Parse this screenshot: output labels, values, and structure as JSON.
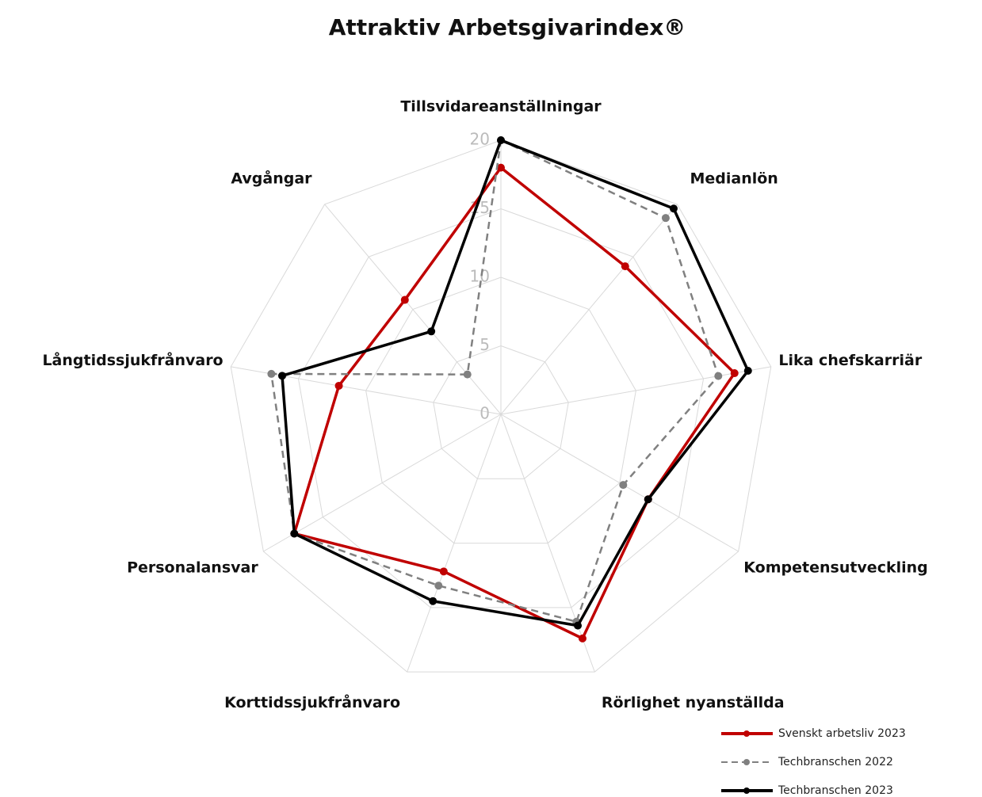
{
  "chart_data": {
    "type": "radar",
    "title": "Attraktiv Arbetsgivarindex®",
    "categories": [
      "Tillsvidareanställningar",
      "Medianlön",
      "Lika chefskarriär",
      "Kompetensutveckling",
      "Rörlighet nyanställda",
      "Korttidssjukfrånvaro",
      "Personalansvar",
      "Långtidssjukfrånvaro",
      "Avgångar"
    ],
    "series": [
      {
        "name": "Svenskt arbetsliv 2023",
        "color": "#c00000",
        "dash": false,
        "values": [
          18,
          14.1,
          17.3,
          12.4,
          17.4,
          12.2,
          17.4,
          12,
          10.9
        ]
      },
      {
        "name": "Techbranschen 2022",
        "color": "#808080",
        "dash": true,
        "values": [
          20,
          18.7,
          16.1,
          10.3,
          16.1,
          13.3,
          17.4,
          17,
          3.8
        ]
      },
      {
        "name": "Techbranschen 2023",
        "color": "#000000",
        "dash": false,
        "values": [
          20,
          19.6,
          18.3,
          12.4,
          16.4,
          14.5,
          17.4,
          16.2,
          7.9
        ]
      }
    ],
    "ylim": [
      0,
      20
    ],
    "yticks": [
      0,
      5,
      10,
      15,
      20
    ],
    "grid": true,
    "legend": "bottom-right"
  }
}
